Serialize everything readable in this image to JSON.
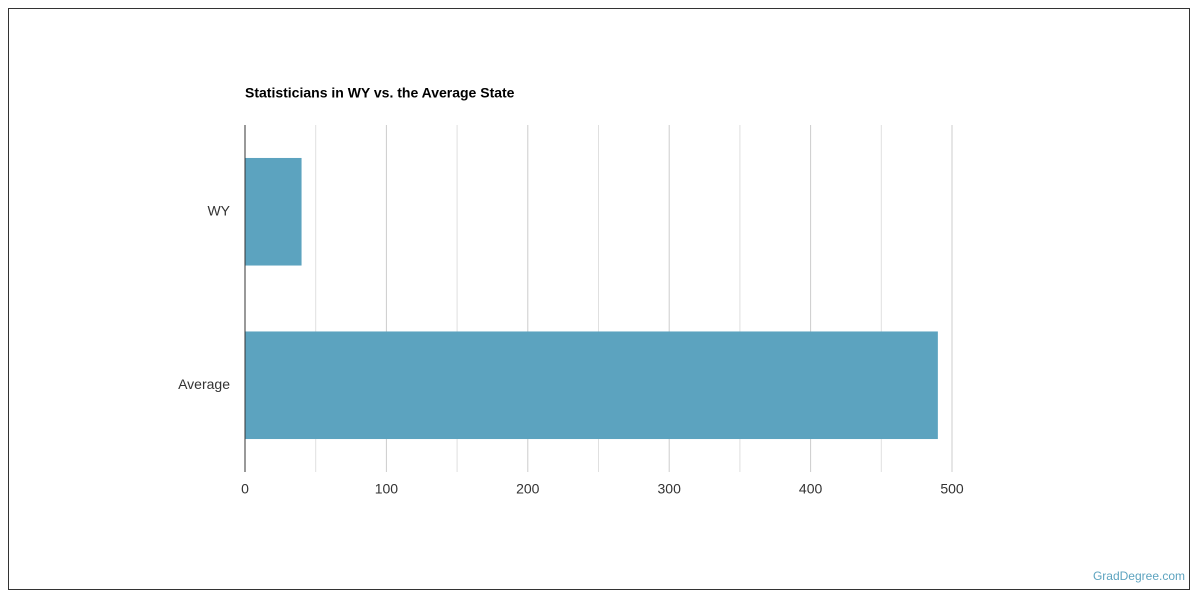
{
  "chart_data": {
    "type": "hbar",
    "title": "Statisticians in WY vs. the Average State",
    "categories": [
      "WY",
      "Average"
    ],
    "values": [
      40,
      490
    ],
    "color": "#5ca3bf",
    "xlim": [
      0,
      500
    ],
    "xticks": [
      0,
      100,
      200,
      300,
      400,
      500
    ],
    "minor_xticks": [
      50,
      150,
      250,
      350,
      450
    ],
    "grid": true
  },
  "watermark": "GradDegree.com"
}
